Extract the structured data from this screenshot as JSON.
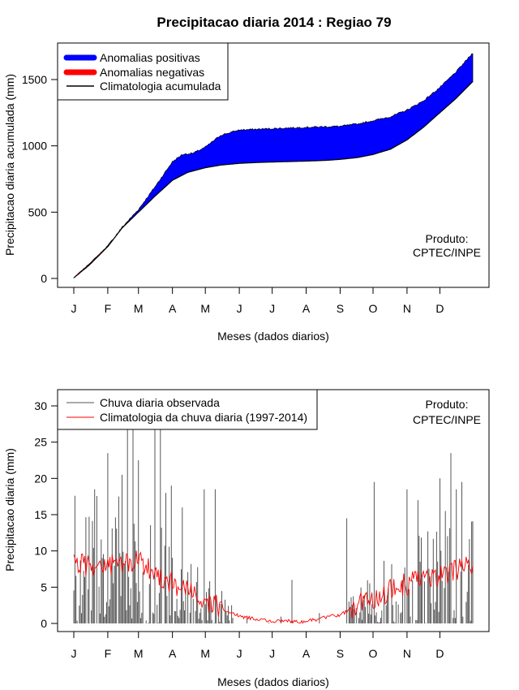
{
  "title": "Precipitacao diaria 2014 : Regiao 79",
  "chart_data": [
    {
      "type": "area",
      "ylabel": "Precipitacao diaria acumulada (mm)",
      "xlabel": "Meses (dados diarios)",
      "xlim_days": [
        1,
        365
      ],
      "ylim": [
        0,
        1750
      ],
      "yticks": [
        0,
        500,
        1000,
        1500
      ],
      "months": [
        "J",
        "F",
        "M",
        "A",
        "M",
        "J",
        "J",
        "A",
        "S",
        "O",
        "N",
        "D"
      ],
      "month_start_days": [
        1,
        32,
        60,
        91,
        121,
        152,
        182,
        213,
        244,
        274,
        305,
        335
      ],
      "legend": [
        "Anomalias positivas",
        "Anomalias negativas",
        "Climatologia acumulada"
      ],
      "annotation": [
        "Produto:",
        "CPTEC/INPE"
      ],
      "climatology_key_days": [
        1,
        15,
        32,
        45,
        60,
        75,
        91,
        105,
        121,
        135,
        152,
        170,
        182,
        200,
        213,
        230,
        244,
        260,
        274,
        290,
        305,
        320,
        335,
        350,
        365
      ],
      "climatology_key_values": [
        5,
        100,
        240,
        380,
        500,
        620,
        740,
        800,
        835,
        855,
        868,
        875,
        878,
        882,
        885,
        890,
        898,
        912,
        935,
        975,
        1045,
        1140,
        1250,
        1360,
        1485
      ],
      "observed_key_days": [
        1,
        15,
        32,
        45,
        60,
        75,
        91,
        100,
        110,
        121,
        135,
        152,
        182,
        213,
        244,
        260,
        274,
        290,
        305,
        320,
        335,
        350,
        365
      ],
      "observed_key_values": [
        5,
        110,
        245,
        385,
        520,
        690,
        880,
        935,
        945,
        990,
        1080,
        1120,
        1130,
        1140,
        1148,
        1165,
        1190,
        1220,
        1270,
        1340,
        1440,
        1560,
        1700
      ],
      "colors": {
        "positive": "#0000ff",
        "negative": "#ff0000",
        "climatology": "#000000"
      }
    },
    {
      "type": "bar",
      "ylabel": "Precipitacao diaria (mm)",
      "xlabel": "Meses (dados diarios)",
      "xlim_days": [
        1,
        365
      ],
      "ylim": [
        0,
        31
      ],
      "yticks": [
        0,
        5,
        10,
        15,
        20,
        25,
        30
      ],
      "months": [
        "J",
        "F",
        "M",
        "A",
        "M",
        "J",
        "J",
        "A",
        "S",
        "O",
        "N",
        "D"
      ],
      "month_start_days": [
        1,
        32,
        60,
        91,
        121,
        152,
        182,
        213,
        244,
        274,
        305,
        335
      ],
      "legend": [
        "Chuva diaria observada",
        "Climatologia da chuva diaria (1997-2014)"
      ],
      "annotation": [
        "Produto:",
        "CPTEC/INPE"
      ],
      "climatology_daily_key_days": [
        1,
        32,
        60,
        91,
        121,
        152,
        182,
        213,
        244,
        274,
        305,
        335,
        365
      ],
      "climatology_daily_key_values": [
        8.2,
        8.0,
        8.5,
        5.5,
        3.0,
        1.0,
        0.3,
        0.3,
        1.2,
        3.5,
        5.5,
        6.5,
        8.0
      ],
      "observed_highlights_days": [
        20,
        32,
        45,
        50,
        55,
        60,
        75,
        80,
        85,
        90,
        100,
        120,
        130,
        200,
        250,
        275,
        305,
        315,
        335,
        340,
        345,
        350,
        355
      ],
      "observed_highlights_values": [
        18.5,
        23.5,
        20.5,
        26.8,
        26.8,
        22.5,
        26.8,
        26.8,
        18.0,
        19.0,
        16.0,
        18.5,
        18.5,
        6.0,
        14.5,
        19.5,
        18.5,
        17.0,
        20.0,
        15.5,
        23.5,
        18.5,
        19.5
      ],
      "colors": {
        "observed": "#555555",
        "climatology": "#ff0000"
      }
    }
  ]
}
